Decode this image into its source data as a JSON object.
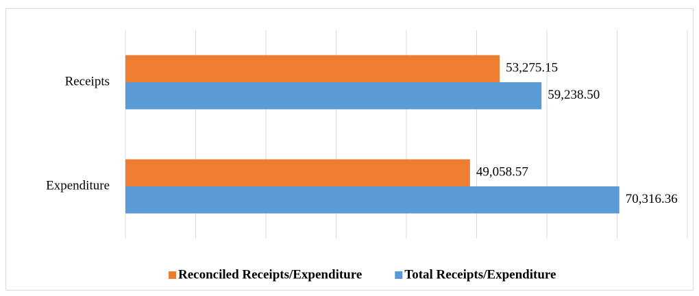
{
  "chart_data": {
    "type": "barh",
    "categories": [
      "Receipts",
      "Expenditure"
    ],
    "series": [
      {
        "name": "Reconciled Receipts/Expenditure",
        "color": "#ed7d31",
        "values": [
          53275.15,
          49058.57
        ],
        "value_labels": [
          "53,275.15",
          "49,058.57"
        ]
      },
      {
        "name": "Total Receipts/Expenditure",
        "color": "#5b9bd5",
        "values": [
          59238.5,
          70316.36
        ],
        "value_labels": [
          "59,238.50",
          "70,316.36"
        ]
      }
    ],
    "xlim": [
      0,
      80000
    ],
    "xticks": [
      0,
      10000,
      20000,
      30000,
      40000,
      50000,
      60000,
      70000,
      80000
    ],
    "grid": true,
    "legend": "bottom"
  }
}
